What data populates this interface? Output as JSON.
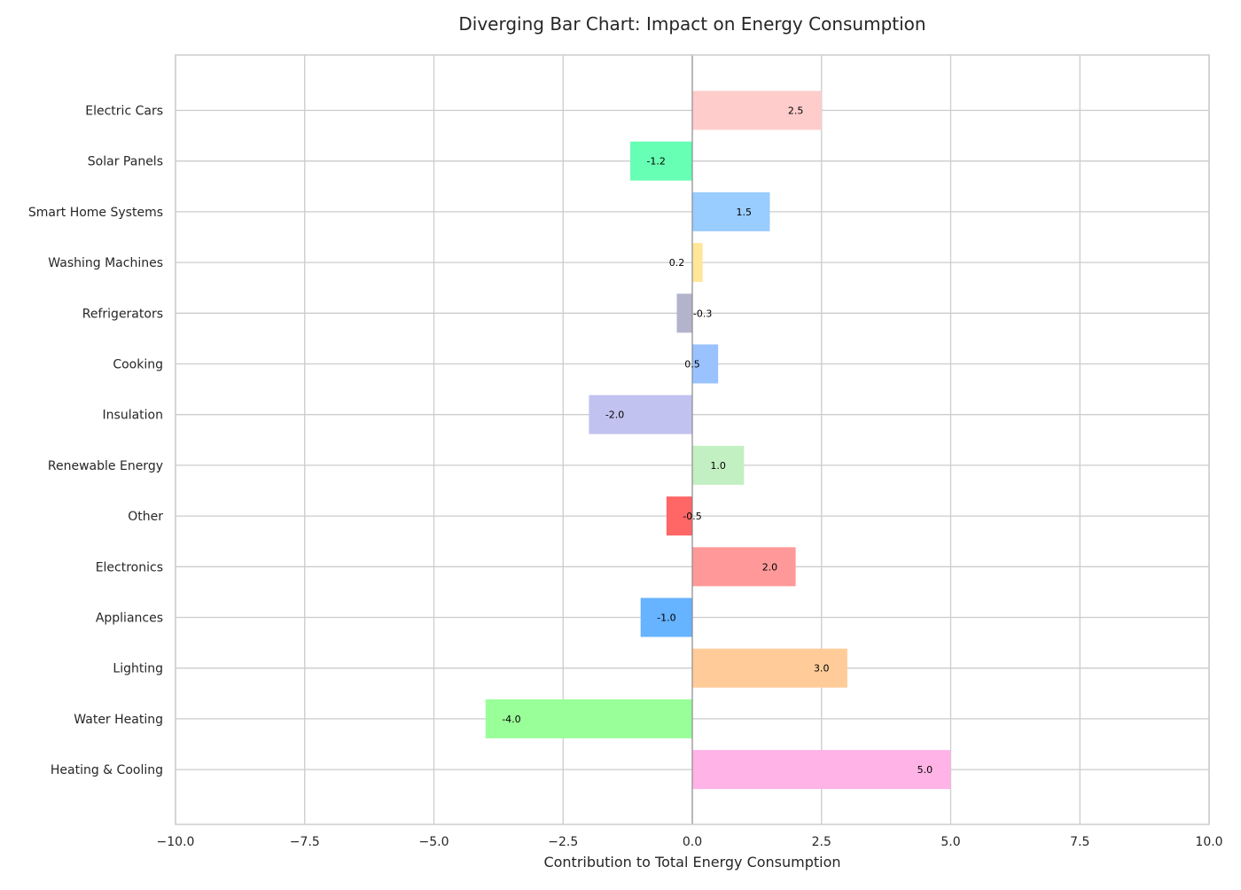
{
  "chart_data": {
    "type": "bar",
    "orientation": "horizontal",
    "title": "Diverging Bar Chart: Impact on Energy Consumption",
    "xlabel": "Contribution to Total Energy Consumption",
    "ylabel": "",
    "xlim": [
      -10,
      10
    ],
    "xticks": [
      -10,
      -7.5,
      -5,
      -2.5,
      0,
      2.5,
      5,
      7.5,
      10
    ],
    "xtick_labels": [
      "−10.0",
      "−7.5",
      "−5.0",
      "−2.5",
      "0.0",
      "2.5",
      "5.0",
      "7.5",
      "10.0"
    ],
    "grid": true,
    "categories": [
      "Electric Cars",
      "Solar Panels",
      "Smart Home Systems",
      "Washing Machines",
      "Refrigerators",
      "Cooking",
      "Insulation",
      "Renewable Energy",
      "Other",
      "Electronics",
      "Appliances",
      "Lighting",
      "Water Heating",
      "Heating & Cooling"
    ],
    "values": [
      2.5,
      -1.2,
      1.5,
      0.2,
      -0.3,
      0.5,
      -2.0,
      1.0,
      -0.5,
      2.0,
      -1.0,
      3.0,
      -4.0,
      5.0
    ],
    "value_labels": [
      "2.5",
      "-1.2",
      "1.5",
      "0.2",
      "-0.3",
      "0.5",
      "-2.0",
      "1.0",
      "-0.5",
      "2.0",
      "-1.0",
      "3.0",
      "-4.0",
      "5.0"
    ],
    "colors": [
      "#ffcccc",
      "#66ffb3",
      "#99ccff",
      "#ffe699",
      "#b3b3cc",
      "#99c2ff",
      "#c2c2f0",
      "#c2f0c2",
      "#ff6666",
      "#ff9999",
      "#66b3ff",
      "#ffcc99",
      "#99ff99",
      "#ffb3e6"
    ],
    "grid_color": "#cccccc",
    "zero_line_color": "#808080",
    "text_color": "#262626"
  }
}
